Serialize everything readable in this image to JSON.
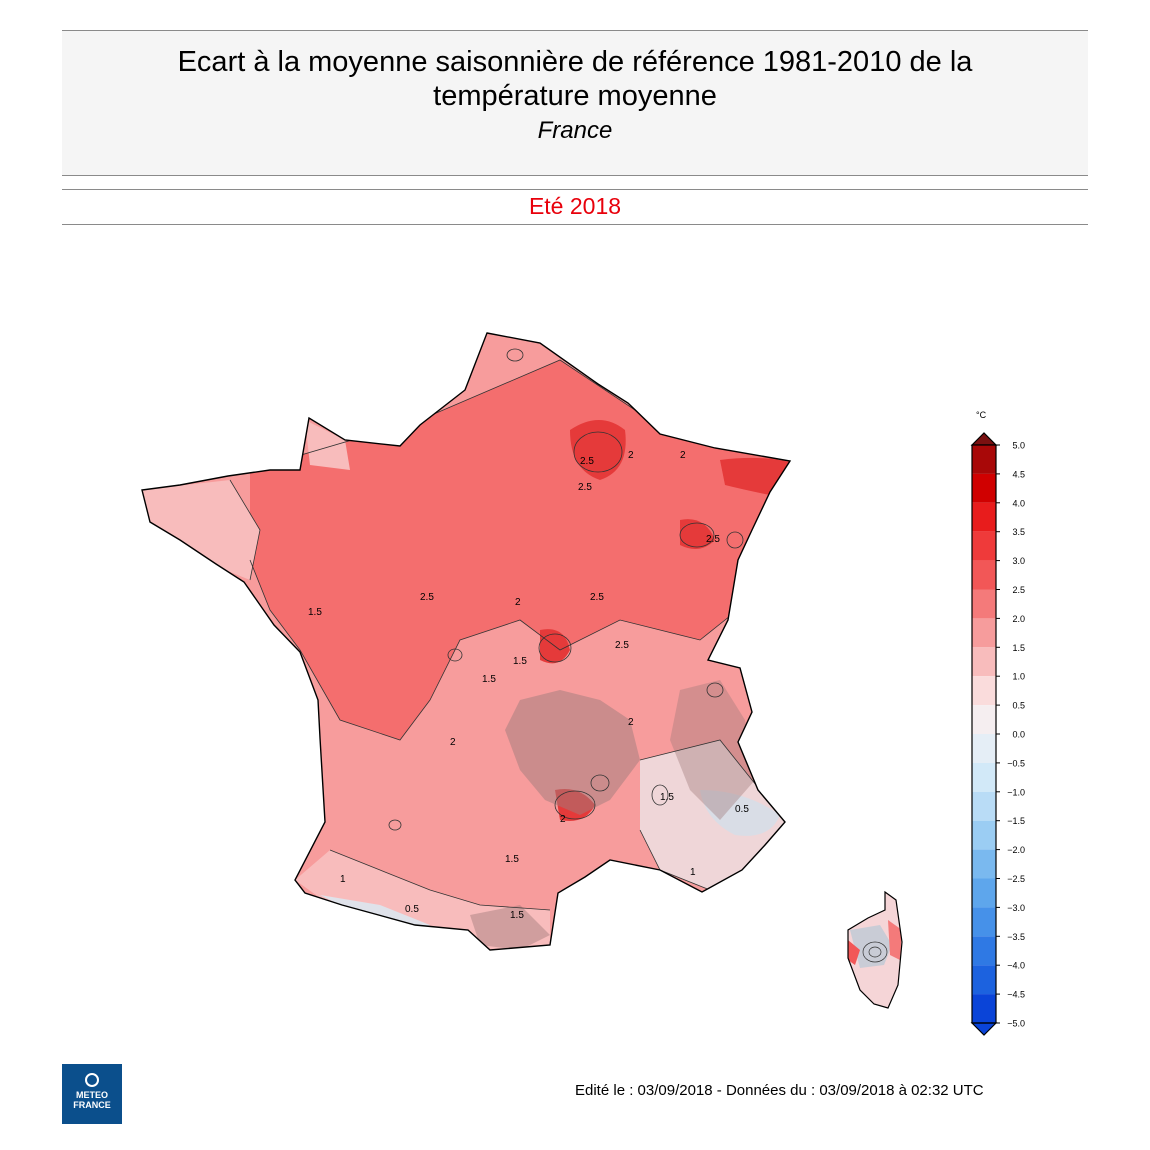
{
  "header": {
    "title": "Ecart à la moyenne saisonnière de référence 1981-2010 de la température moyenne",
    "region": "France",
    "period": "Eté 2018"
  },
  "legend": {
    "unit": "°C",
    "ticks": [
      "5.0",
      "4.5",
      "4.0",
      "3.5",
      "3.0",
      "2.5",
      "2.0",
      "1.5",
      "1.0",
      "0.5",
      "0.0",
      "−0.5",
      "−1.0",
      "−1.5",
      "−2.0",
      "−2.5",
      "−3.0",
      "−3.5",
      "−4.0",
      "−4.5",
      "−5.0"
    ],
    "colors": [
      "#7a1010",
      "#a80808",
      "#d00000",
      "#e81c1c",
      "#ef3a3a",
      "#f25757",
      "#f47a7a",
      "#f69c9c",
      "#f8bcbc",
      "#fadcdc",
      "#f5eef0",
      "#e5eef6",
      "#d2e9f8",
      "#b9dcf6",
      "#9bcdf3",
      "#7ab9ef",
      "#5ea6ec",
      "#4691e9",
      "#2f79e4",
      "#1c62df",
      "#0a44d8"
    ]
  },
  "map": {
    "contour_labels": [
      "2.5",
      "2",
      "2",
      "1.5",
      "2.5",
      "2",
      "2.5",
      "1.5",
      "2",
      "1.5",
      "1",
      "0.5",
      "0.5",
      "1",
      "2",
      "1.5",
      "2.5",
      "2",
      "2.5",
      "1.5",
      "1.5",
      "2.5"
    ]
  },
  "footer": {
    "edited": "Edité le : 03/09/2018 - Données du : 03/09/2018 à 02:32 UTC"
  },
  "logo": {
    "line1": "METEO",
    "line2": "FRANCE"
  }
}
